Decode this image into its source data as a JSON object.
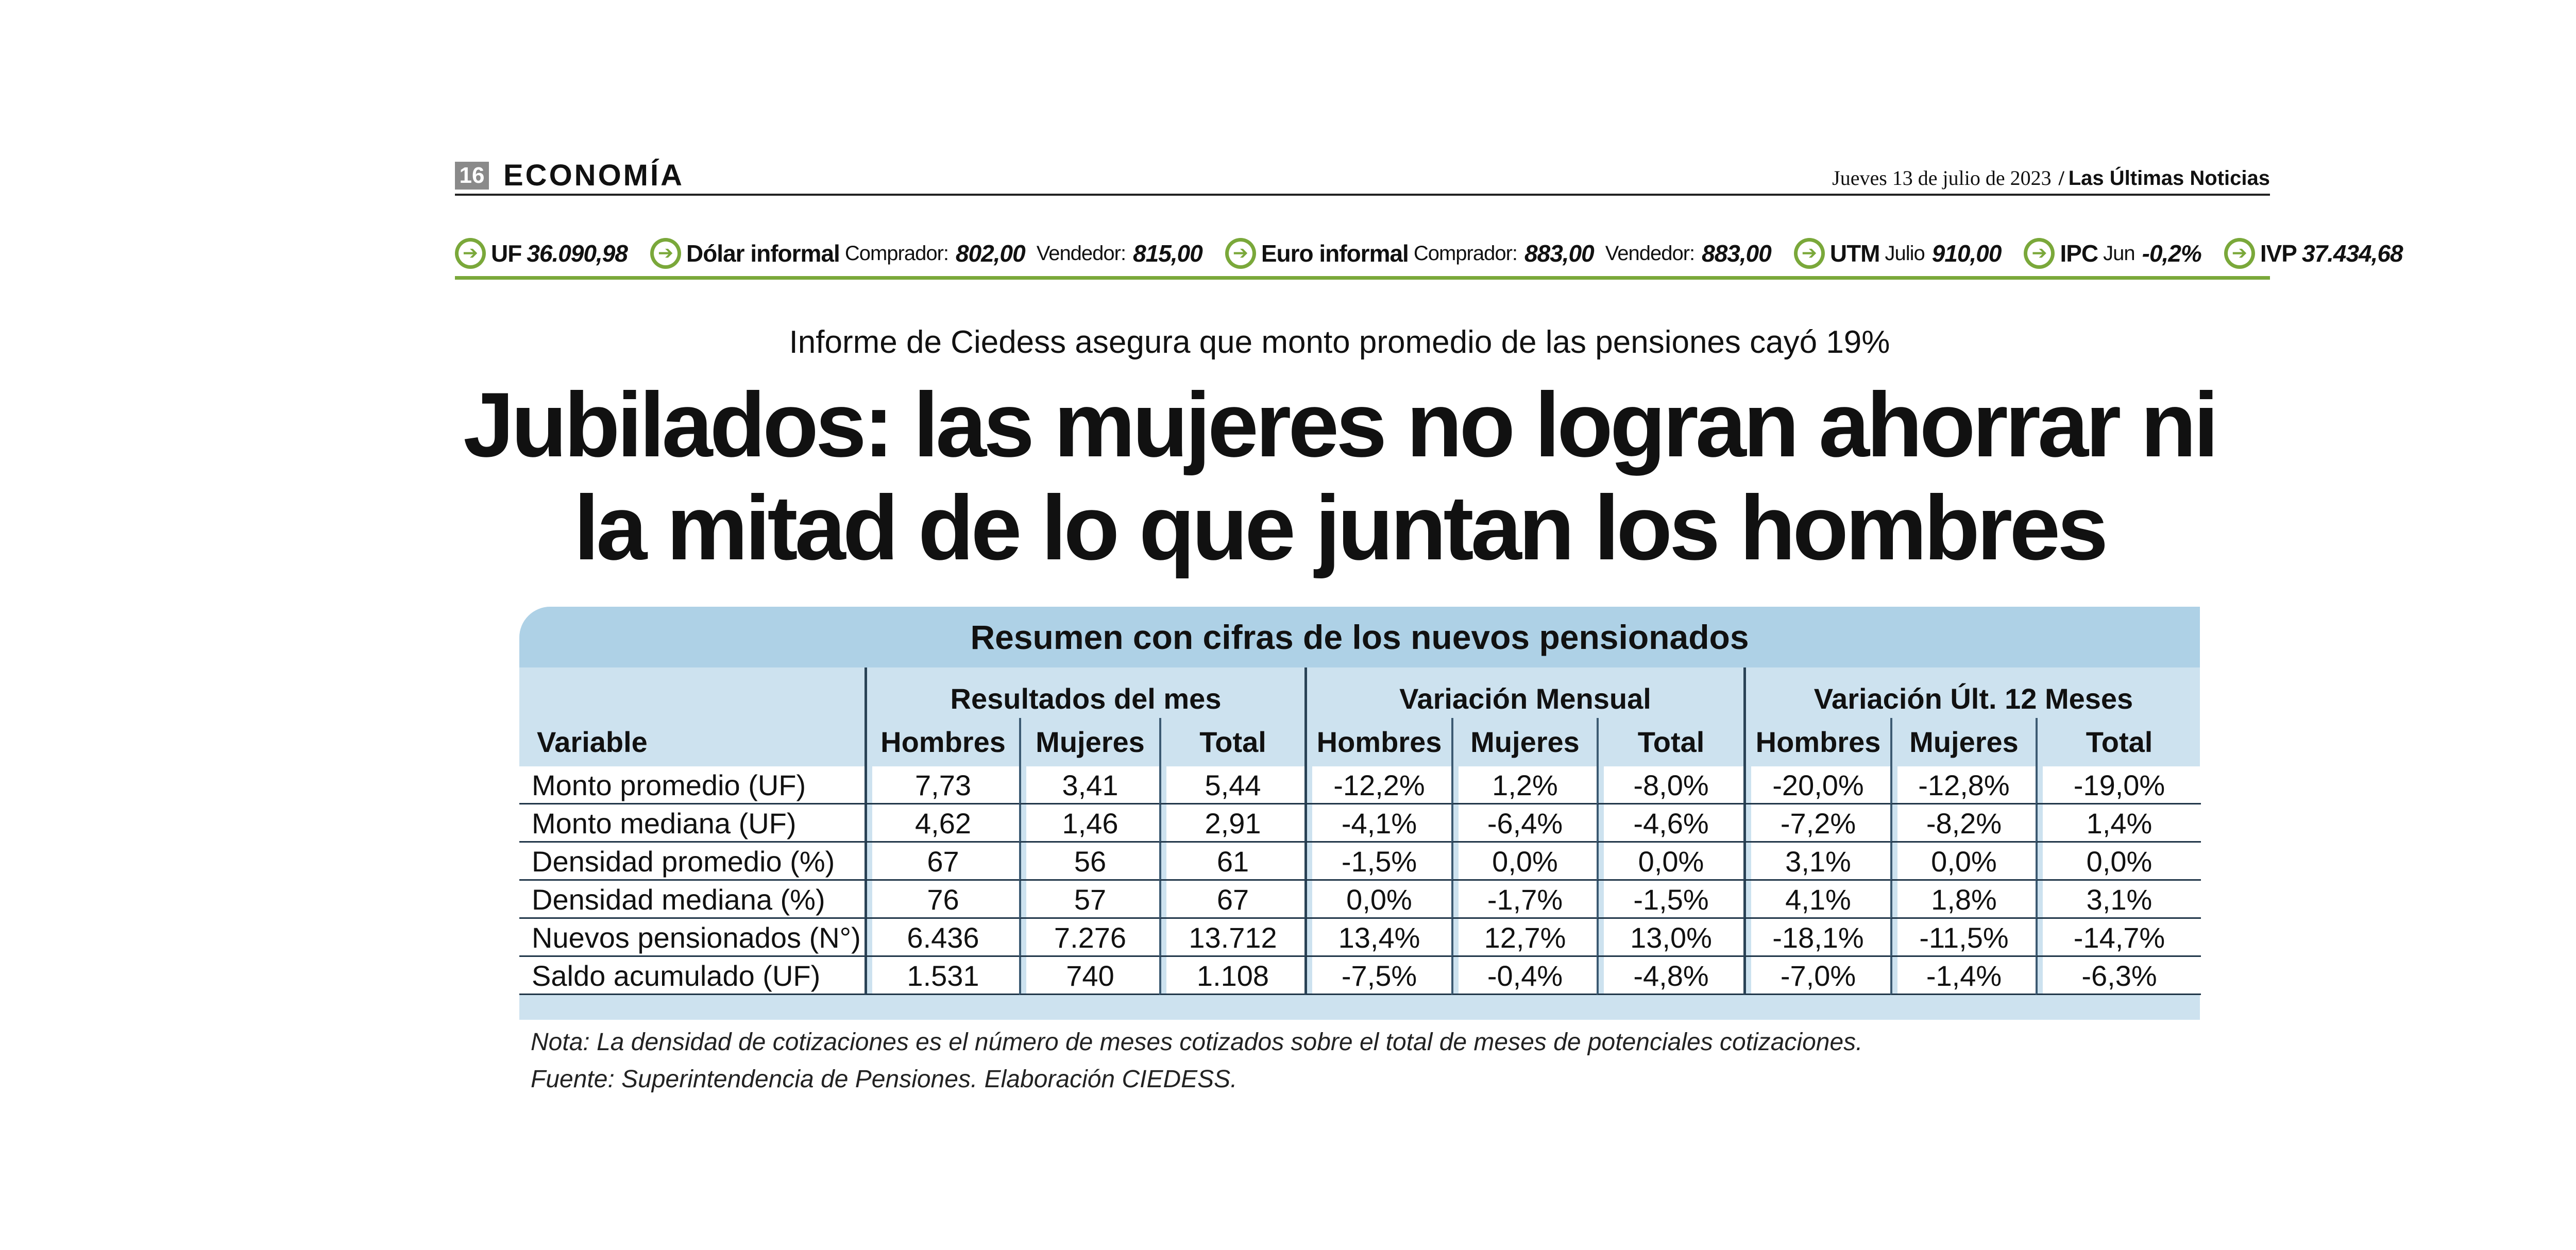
{
  "header": {
    "page_number": "16",
    "section": "ECONOMÍA",
    "date": "Jueves 13 de julio de 2023",
    "separator": "/",
    "newspaper": "Las Últimas Noticias"
  },
  "indicators": [
    {
      "name": "UF",
      "parts": [
        {
          "value": "36.090,98"
        }
      ]
    },
    {
      "name": "Dólar informal",
      "parts": [
        {
          "label": "Comprador:",
          "value": "802,00"
        },
        {
          "label": "Vendedor:",
          "value": "815,00"
        }
      ]
    },
    {
      "name": "Euro informal",
      "parts": [
        {
          "label": "Comprador:",
          "value": "883,00"
        },
        {
          "label": "Vendedor:",
          "value": "883,00"
        }
      ]
    },
    {
      "name": "UTM",
      "parts": [
        {
          "label": "Julio",
          "value": "910,00"
        }
      ]
    },
    {
      "name": "IPC",
      "parts": [
        {
          "label": "Jun",
          "value": "-0,2%"
        }
      ]
    },
    {
      "name": "IVP",
      "parts": [
        {
          "value": "37.434,68"
        }
      ]
    }
  ],
  "article": {
    "kicker": "Informe de Ciedess asegura que monto promedio de las pensiones cayó 19%",
    "headline_line1": "Jubilados: las mujeres no logran ahorrar ni",
    "headline_line2": "la mitad de lo que juntan los hombres"
  },
  "table": {
    "title": "Resumen con cifras de los nuevos pensionados",
    "groups": [
      "Resultados del mes",
      "Variación Mensual",
      "Variación Últ. 12 Meses"
    ],
    "columns": [
      "Variable",
      "Hombres",
      "Mujeres",
      "Total",
      "Hombres",
      "Mujeres",
      "Total",
      "Hombres",
      "Mujeres",
      "Total"
    ],
    "rows": [
      [
        "Monto promedio (UF)",
        "7,73",
        "3,41",
        "5,44",
        "-12,2%",
        "1,2%",
        "-8,0%",
        "-20,0%",
        "-12,8%",
        "-19,0%"
      ],
      [
        "Monto mediana (UF)",
        "4,62",
        "1,46",
        "2,91",
        "-4,1%",
        "-6,4%",
        "-4,6%",
        "-7,2%",
        "-8,2%",
        "1,4%"
      ],
      [
        "Densidad promedio (%)",
        "67",
        "56",
        "61",
        "-1,5%",
        "0,0%",
        "0,0%",
        "3,1%",
        "0,0%",
        "0,0%"
      ],
      [
        "Densidad mediana (%)",
        "76",
        "57",
        "67",
        "0,0%",
        "-1,7%",
        "-1,5%",
        "4,1%",
        "1,8%",
        "3,1%"
      ],
      [
        "Nuevos pensionados (N°)",
        "6.436",
        "7.276",
        "13.712",
        "13,4%",
        "12,7%",
        "13,0%",
        "-18,1%",
        "-11,5%",
        "-14,7%"
      ],
      [
        "Saldo acumulado (UF)",
        "1.531",
        "740",
        "1.108",
        "-7,5%",
        "-0,4%",
        "-4,8%",
        "-7,0%",
        "-1,4%",
        "-6,3%"
      ]
    ],
    "note": "Nota: La densidad de cotizaciones es el número de meses cotizados sobre el total de meses de potenciales cotizaciones.",
    "source": "Fuente: Superintendencia de Pensiones. Elaboración CIEDESS."
  },
  "colors": {
    "accent_green": "#7aa83a",
    "table_header_blue": "#aed1e6",
    "table_body_blue": "#cde2ef"
  }
}
